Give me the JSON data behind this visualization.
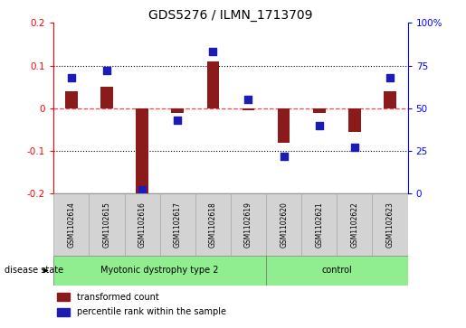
{
  "title": "GDS5276 / ILMN_1713709",
  "samples": [
    "GSM1102614",
    "GSM1102615",
    "GSM1102616",
    "GSM1102617",
    "GSM1102618",
    "GSM1102619",
    "GSM1102620",
    "GSM1102621",
    "GSM1102622",
    "GSM1102623"
  ],
  "transformed_count": [
    0.04,
    0.05,
    -0.215,
    -0.01,
    0.11,
    -0.005,
    -0.08,
    -0.01,
    -0.055,
    0.04
  ],
  "percentile_rank": [
    68,
    72,
    2,
    43,
    83,
    55,
    22,
    40,
    27,
    68
  ],
  "ylim_left": [
    -0.2,
    0.2
  ],
  "ylim_right": [
    0,
    100
  ],
  "yticks_left": [
    -0.2,
    -0.1,
    0.0,
    0.1,
    0.2
  ],
  "yticks_right": [
    0,
    25,
    50,
    75,
    100
  ],
  "ytick_labels_left": [
    "-0.2",
    "-0.1",
    "0",
    "0.1",
    "0.2"
  ],
  "ytick_labels_right": [
    "0",
    "25",
    "50",
    "75",
    "100%"
  ],
  "bar_color": "#8B1A1A",
  "dot_color": "#1C1CB5",
  "zero_line_color": "#FF4444",
  "grid_color": "#555555",
  "disease_groups": [
    {
      "label": "Myotonic dystrophy type 2",
      "start": 0,
      "end": 6
    },
    {
      "label": "control",
      "start": 6,
      "end": 10
    }
  ],
  "disease_state_label": "disease state",
  "legend_items": [
    {
      "label": "transformed count",
      "color": "#8B1A1A"
    },
    {
      "label": "percentile rank within the sample",
      "color": "#1C1CB5"
    }
  ],
  "xlabel_area_color": "#D3D3D3",
  "group_color": "#90EE90",
  "bar_width": 0.35,
  "dot_size": 28,
  "figsize": [
    5.15,
    3.63
  ],
  "dpi": 100
}
